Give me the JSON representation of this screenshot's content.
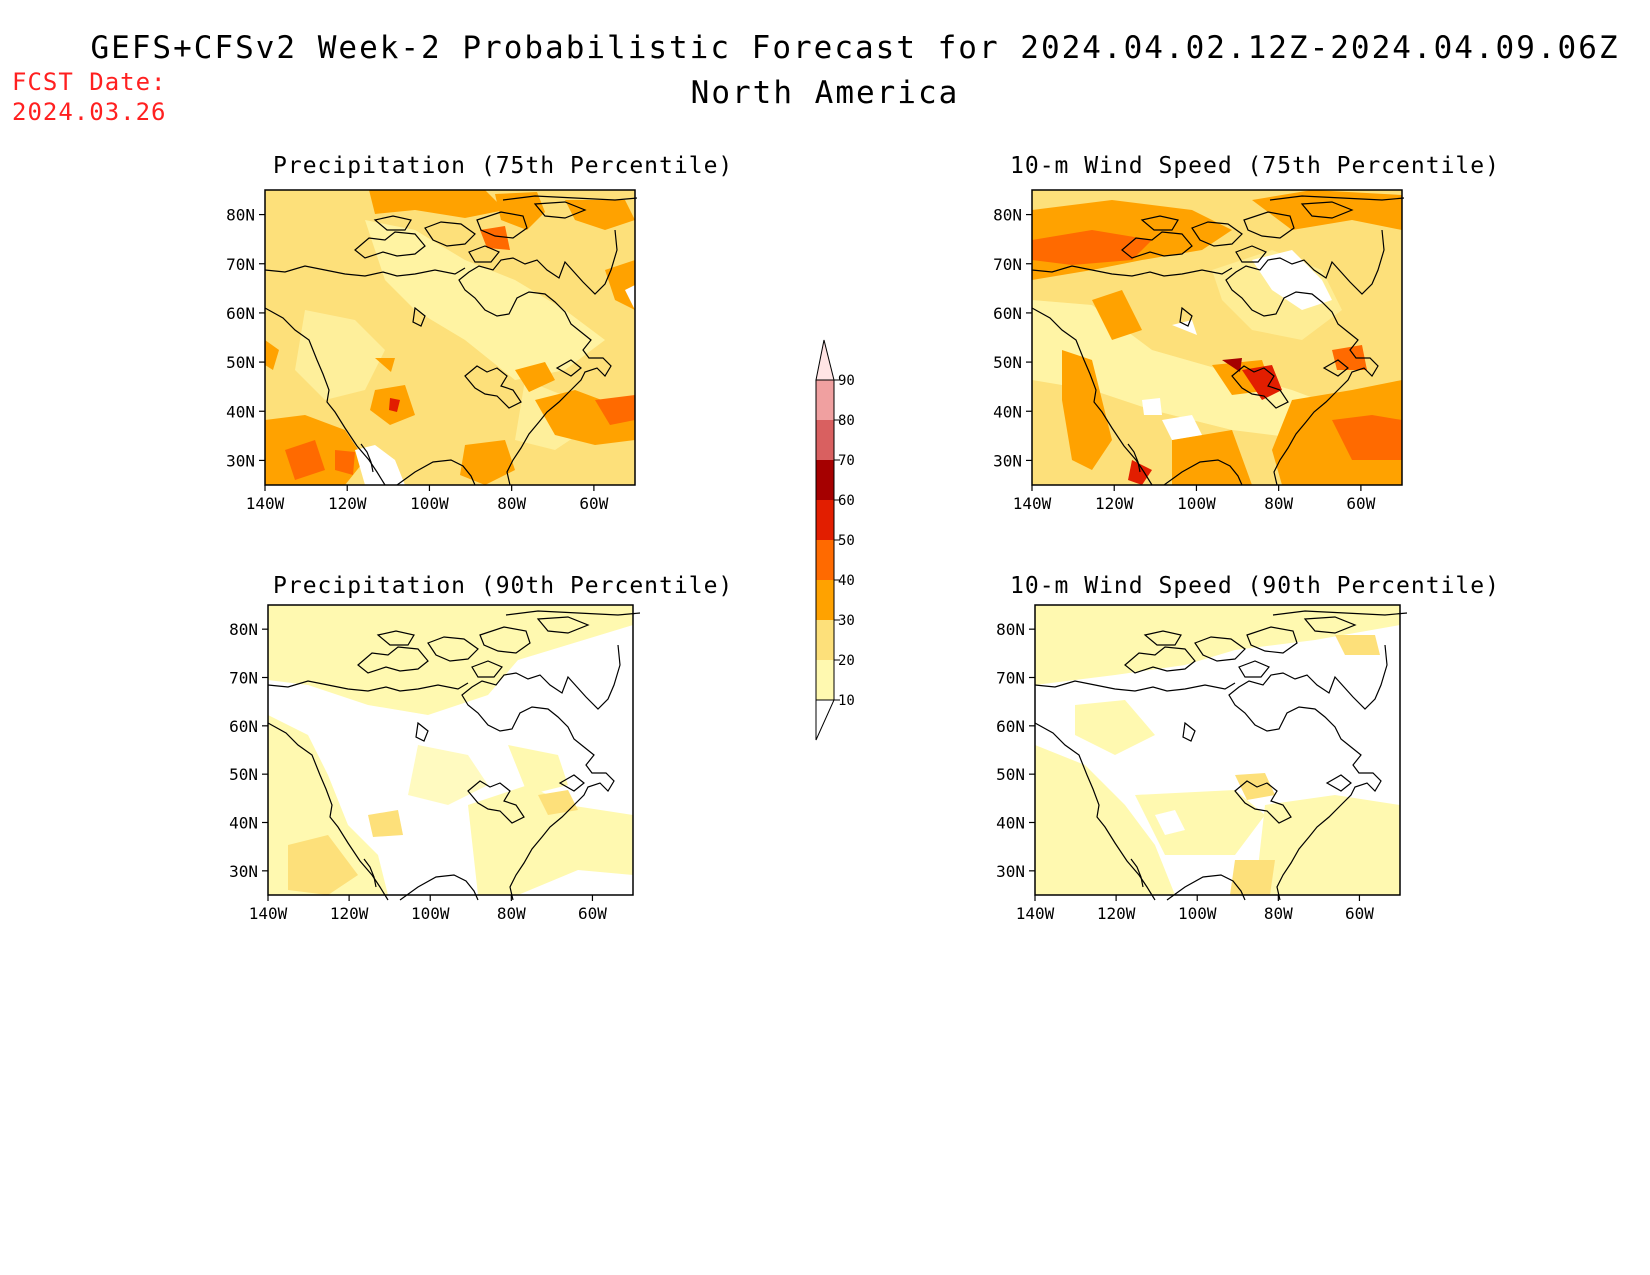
{
  "header": {
    "title": "GEFS+CFSv2 Week-2 Probabilistic Forecast for 2024.04.02.12Z-2024.04.09.06Z",
    "subtitle": "North America",
    "fcst_label": "FCST Date:",
    "fcst_value": "2024.03.26"
  },
  "panels": [
    {
      "title": "Precipitation (75th Percentile)"
    },
    {
      "title": "10-m Wind Speed (75th Percentile)"
    },
    {
      "title": "Precipitation (90th Percentile)"
    },
    {
      "title": "10-m Wind Speed (90th Percentile)"
    }
  ],
  "axes": {
    "lat_labels": [
      "80N",
      "70N",
      "60N",
      "50N",
      "40N",
      "30N"
    ],
    "lon_labels": [
      "140W",
      "120W",
      "100W",
      "80W",
      "60W"
    ]
  },
  "colorbar": {
    "levels": [
      "10",
      "20",
      "30",
      "40",
      "50",
      "60",
      "70",
      "80",
      "90"
    ],
    "colors": [
      "#fff9b0",
      "#fde07a",
      "#ffa200",
      "#ff6a00",
      "#e21e00",
      "#a50000",
      "#d96060",
      "#f0a0a0",
      "#ffe4e4"
    ]
  }
}
